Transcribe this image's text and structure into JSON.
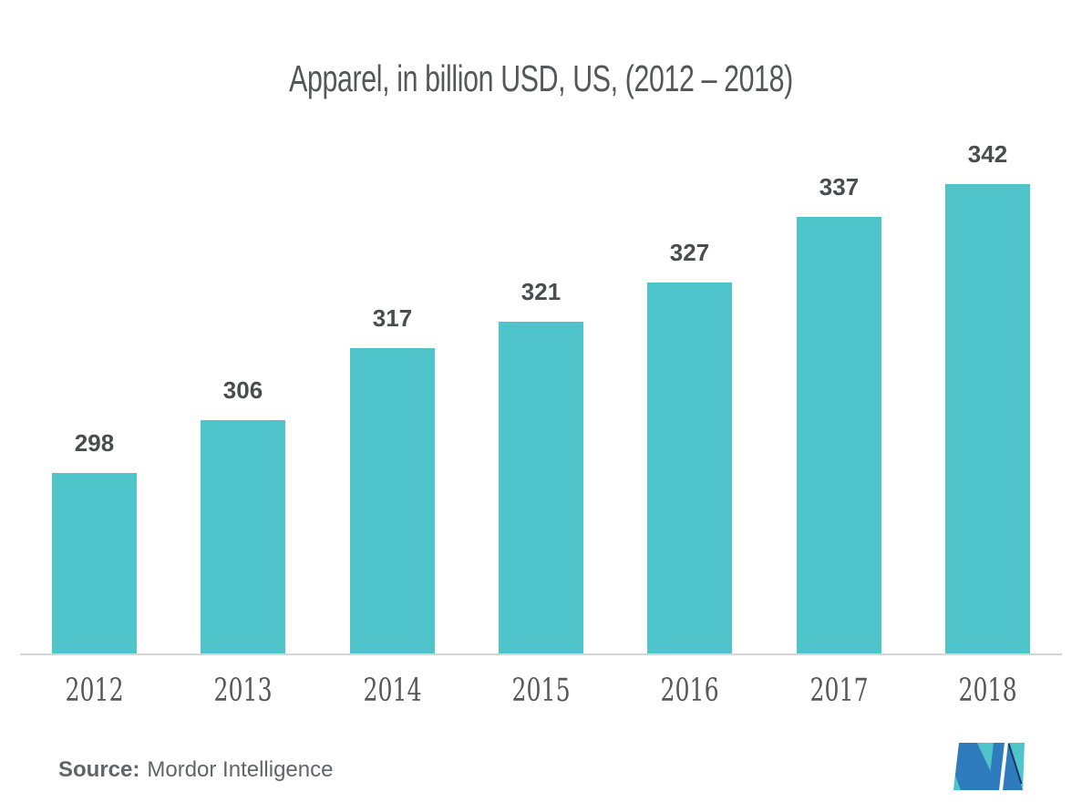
{
  "title": "Apparel, in billion USD, US, (2012 – 2018)",
  "source": {
    "label": "Source:",
    "name": "Mordor Intelligence"
  },
  "logo": {
    "name": "mordor-intelligence-logo"
  },
  "colors": {
    "bar": "#4FC4CB",
    "title_text": "#55565A",
    "value_label_text": "#4B4C4E",
    "year_label_text": "#57575A",
    "axis_line": "#D5D5D5",
    "source_text": "#636469",
    "logo_blue": "#2E7BBE",
    "logo_teal": "#4FC4CB",
    "logo_navy": "#1C3660",
    "background": "#FFFFFF"
  },
  "chart_data": {
    "type": "bar",
    "title": "Apparel, in billion USD, US, (2012 – 2018)",
    "categories": [
      "2012",
      "2013",
      "2014",
      "2015",
      "2016",
      "2017",
      "2018"
    ],
    "values": [
      298,
      306,
      317,
      321,
      327,
      337,
      342
    ],
    "xlabel": "",
    "ylabel": "",
    "ylim": [
      270,
      350
    ],
    "grid": false,
    "legend": null,
    "y_axis_shown": false,
    "value_labels_shown": true,
    "bar_color": "#4FC4CB"
  }
}
